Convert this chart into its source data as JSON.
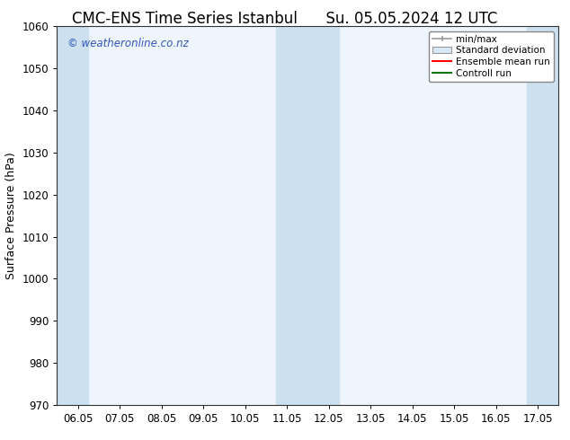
{
  "title": "CMC-ENS Time Series Istanbul      Su. 05.05.2024 12 UTC",
  "ylabel": "Surface Pressure (hPa)",
  "ylim": [
    970,
    1060
  ],
  "yticks": [
    970,
    980,
    990,
    1000,
    1010,
    1020,
    1030,
    1040,
    1050,
    1060
  ],
  "xtick_labels": [
    "06.05",
    "07.05",
    "08.05",
    "09.05",
    "10.05",
    "11.05",
    "12.05",
    "13.05",
    "14.05",
    "15.05",
    "16.05",
    "17.05"
  ],
  "xtick_positions": [
    0,
    1,
    2,
    3,
    4,
    5,
    6,
    7,
    8,
    9,
    10,
    11
  ],
  "xlim": [
    -0.5,
    11.5
  ],
  "shaded_bands": [
    {
      "x_start": -0.5,
      "x_end": 0.25
    },
    {
      "x_start": 4.75,
      "x_end": 6.25
    },
    {
      "x_start": 10.75,
      "x_end": 11.5
    }
  ],
  "shaded_color": "#cce0f0",
  "watermark_text": "© weatheronline.co.nz",
  "watermark_color": "#3355bb",
  "legend_entries": [
    "min/max",
    "Standard deviation",
    "Ensemble mean run",
    "Controll run"
  ],
  "legend_line_colors": [
    "#999999",
    "#cccccc",
    "#ff0000",
    "#007700"
  ],
  "background_color": "#ffffff",
  "plot_bg_color": "#eef5fc",
  "title_fontsize": 12,
  "axis_label_fontsize": 9,
  "tick_fontsize": 8.5,
  "watermark_fontsize": 8.5
}
